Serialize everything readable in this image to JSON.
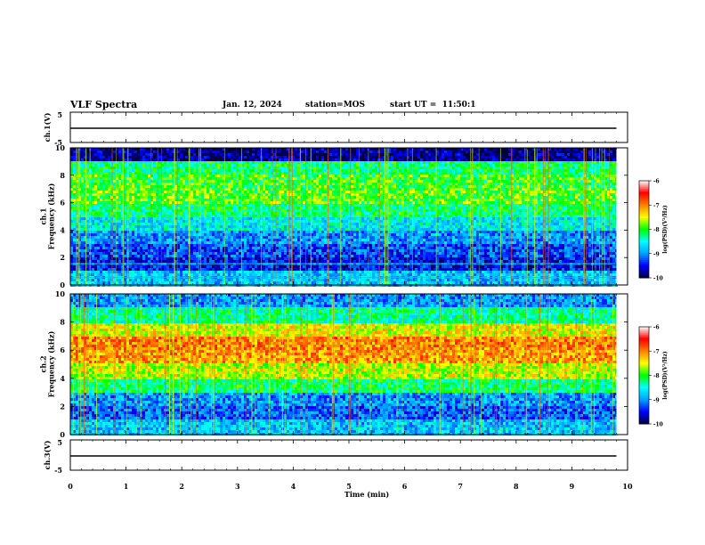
{
  "header": {
    "title": "VLF Spectra",
    "date": "Jan. 12, 2024",
    "station": "station=MOS",
    "start_ut": "start UT =  11:50:1"
  },
  "colorscale": {
    "stops": [
      "#000040",
      "#0000ff",
      "#00a0ff",
      "#00ffff",
      "#00ff00",
      "#ffff00",
      "#ff8000",
      "#ff0000",
      "#ffffff"
    ],
    "ticks": [
      "-6",
      "-7",
      "-8",
      "-9",
      "-10"
    ],
    "label": "log(PSD)(V²/Hz)"
  },
  "chart_data": [
    {
      "type": "line",
      "panel": "ch1-voltage",
      "ylabel": "ch.1(V)",
      "ylim": [
        -5,
        5
      ],
      "yticks": [
        "5",
        "-5"
      ],
      "series": [
        {
          "x": [
            0,
            9.8
          ],
          "values": [
            0,
            0
          ]
        }
      ]
    },
    {
      "type": "heatmap",
      "panel": "ch1-spectrogram",
      "ylabel": "ch.1\nFrequency (kHz)",
      "ylim": [
        0,
        10
      ],
      "xlim": [
        0,
        10
      ],
      "yticks": [
        "0",
        "2",
        "4",
        "6",
        "8",
        "10"
      ],
      "frequency_khz": [
        0.5,
        1.5,
        2.5,
        3.5,
        4.5,
        5.5,
        6.5,
        7.5,
        8.5,
        9.5
      ],
      "time_min": [
        0.5,
        1.5,
        2.5,
        3.5,
        4.5,
        5.5,
        6.5,
        7.5,
        8.5,
        9.5
      ],
      "log_psd": [
        [
          -8.8,
          -8.8,
          -8.8,
          -8.8,
          -8.8,
          -8.8,
          -8.8,
          -8.8,
          -8.8,
          -8.8
        ],
        [
          -9.5,
          -9.5,
          -9.5,
          -9.5,
          -9.5,
          -9.5,
          -9.5,
          -9.5,
          -9.5,
          -9.5
        ],
        [
          -9.3,
          -9.3,
          -9.3,
          -9.3,
          -9.3,
          -9.3,
          -9.3,
          -9.3,
          -9.3,
          -9.3
        ],
        [
          -9.0,
          -9.0,
          -9.0,
          -9.0,
          -9.0,
          -9.0,
          -9.0,
          -9.0,
          -9.0,
          -9.0
        ],
        [
          -8.6,
          -8.6,
          -8.6,
          -8.6,
          -8.6,
          -8.6,
          -8.6,
          -8.6,
          -8.6,
          -8.6
        ],
        [
          -8.2,
          -8.2,
          -8.2,
          -8.2,
          -8.2,
          -8.2,
          -8.2,
          -8.2,
          -8.2,
          -8.2
        ],
        [
          -7.9,
          -7.9,
          -7.9,
          -7.9,
          -7.9,
          -7.9,
          -7.9,
          -7.9,
          -7.9,
          -7.9
        ],
        [
          -8.0,
          -8.0,
          -8.0,
          -8.0,
          -8.0,
          -8.0,
          -8.0,
          -8.0,
          -8.0,
          -8.0
        ],
        [
          -8.2,
          -8.2,
          -8.2,
          -8.2,
          -8.2,
          -8.2,
          -8.2,
          -8.2,
          -8.2,
          -8.2
        ],
        [
          -9.8,
          -9.8,
          -9.8,
          -9.8,
          -9.8,
          -9.8,
          -9.8,
          -9.8,
          -9.8,
          -9.8
        ]
      ]
    },
    {
      "type": "heatmap",
      "panel": "ch2-spectrogram",
      "ylabel": "ch.2\nFrequency (kHz)",
      "ylim": [
        0,
        10
      ],
      "xlim": [
        0,
        10
      ],
      "yticks": [
        "0",
        "2",
        "4",
        "6",
        "8",
        "10"
      ],
      "frequency_khz": [
        0.5,
        1.5,
        2.5,
        3.5,
        4.5,
        5.5,
        6.5,
        7.5,
        8.5,
        9.5
      ],
      "time_min": [
        0.5,
        1.5,
        2.5,
        3.5,
        4.5,
        5.5,
        6.5,
        7.5,
        8.5,
        9.5
      ],
      "log_psd": [
        [
          -8.8,
          -8.8,
          -8.8,
          -8.8,
          -8.8,
          -8.8,
          -8.8,
          -8.8,
          -8.8,
          -8.8
        ],
        [
          -9.2,
          -9.2,
          -9.2,
          -9.2,
          -9.2,
          -9.2,
          -9.2,
          -9.2,
          -9.2,
          -9.2
        ],
        [
          -9.0,
          -9.0,
          -9.0,
          -9.0,
          -9.0,
          -9.0,
          -9.0,
          -9.0,
          -9.0,
          -9.0
        ],
        [
          -8.2,
          -8.2,
          -8.2,
          -8.2,
          -8.2,
          -8.2,
          -8.2,
          -8.2,
          -8.2,
          -8.2
        ],
        [
          -7.6,
          -7.6,
          -7.6,
          -7.6,
          -7.6,
          -7.6,
          -7.6,
          -7.6,
          -7.6,
          -7.6
        ],
        [
          -7.1,
          -7.1,
          -7.1,
          -7.1,
          -7.1,
          -7.1,
          -7.1,
          -7.1,
          -7.1,
          -7.1
        ],
        [
          -7.0,
          -7.0,
          -7.0,
          -7.0,
          -7.0,
          -7.0,
          -7.0,
          -7.0,
          -7.0,
          -7.0
        ],
        [
          -7.5,
          -7.5,
          -7.5,
          -7.5,
          -7.5,
          -7.5,
          -7.5,
          -7.5,
          -7.5,
          -7.5
        ],
        [
          -8.3,
          -8.3,
          -8.3,
          -8.3,
          -8.3,
          -8.3,
          -8.3,
          -8.3,
          -8.3,
          -8.3
        ],
        [
          -9.0,
          -9.0,
          -9.0,
          -9.0,
          -9.0,
          -9.0,
          -9.0,
          -9.0,
          -9.0,
          -9.0
        ]
      ]
    },
    {
      "type": "line",
      "panel": "ch3-voltage",
      "ylabel": "ch.3(V)",
      "ylim": [
        -5,
        5
      ],
      "yticks": [
        "5",
        "-5"
      ],
      "series": [
        {
          "x": [
            0,
            9.8
          ],
          "values": [
            0,
            0
          ]
        }
      ]
    }
  ],
  "xaxis": {
    "label": "Time (min)",
    "ticks": [
      "0",
      "1",
      "2",
      "3",
      "4",
      "5",
      "6",
      "7",
      "8",
      "9",
      "10"
    ],
    "range": [
      0,
      10
    ]
  }
}
